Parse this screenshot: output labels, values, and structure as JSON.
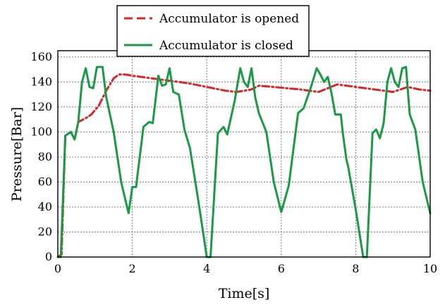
{
  "chart_data": {
    "type": "line",
    "title": "",
    "xlabel": "Time[s]",
    "ylabel": "Pressure[Bar]",
    "xlim": [
      0,
      10
    ],
    "ylim": [
      0,
      165
    ],
    "xticks": [
      0,
      2,
      4,
      6,
      8,
      10
    ],
    "yticks": [
      0,
      20,
      40,
      60,
      80,
      100,
      120,
      140,
      160
    ],
    "grid": true,
    "legend_position": "top-center, above plot",
    "series": [
      {
        "name": "Accumulator is opened",
        "color": "#d9262b",
        "dash": "dash-dot",
        "points": [
          [
            0.0,
            0
          ],
          [
            0.1,
            2
          ],
          [
            0.2,
            97
          ],
          [
            0.35,
            100
          ],
          [
            0.45,
            94
          ],
          [
            0.55,
            108
          ],
          [
            0.75,
            111
          ],
          [
            0.9,
            114
          ],
          [
            1.1,
            121
          ],
          [
            1.3,
            133
          ],
          [
            1.5,
            143
          ],
          [
            1.65,
            146
          ],
          [
            1.8,
            146
          ],
          [
            2.0,
            145
          ],
          [
            2.5,
            143
          ],
          [
            3.0,
            141
          ],
          [
            3.5,
            139
          ],
          [
            4.0,
            136
          ],
          [
            4.5,
            133
          ],
          [
            4.8,
            132
          ],
          [
            5.0,
            133
          ],
          [
            5.2,
            134
          ],
          [
            5.4,
            137
          ],
          [
            5.8,
            136
          ],
          [
            6.5,
            134
          ],
          [
            7.0,
            132
          ],
          [
            7.5,
            138
          ],
          [
            8.0,
            136
          ],
          [
            8.5,
            134
          ],
          [
            9.0,
            132
          ],
          [
            9.4,
            136
          ],
          [
            9.7,
            134
          ],
          [
            10.0,
            133
          ]
        ]
      },
      {
        "name": "Accumulator is closed",
        "color": "#1a9a45",
        "dash": "solid",
        "points": [
          [
            0.0,
            0
          ],
          [
            0.08,
            0
          ],
          [
            0.2,
            97
          ],
          [
            0.35,
            100
          ],
          [
            0.45,
            94
          ],
          [
            0.55,
            108
          ],
          [
            0.65,
            140
          ],
          [
            0.75,
            151
          ],
          [
            0.85,
            136
          ],
          [
            0.95,
            135
          ],
          [
            1.05,
            152
          ],
          [
            1.2,
            152
          ],
          [
            1.3,
            128
          ],
          [
            1.5,
            100
          ],
          [
            1.7,
            60
          ],
          [
            1.9,
            35
          ],
          [
            2.0,
            56
          ],
          [
            2.1,
            56
          ],
          [
            2.3,
            104
          ],
          [
            2.45,
            108
          ],
          [
            2.55,
            107
          ],
          [
            2.7,
            145
          ],
          [
            2.8,
            137
          ],
          [
            2.9,
            138
          ],
          [
            3.0,
            151
          ],
          [
            3.1,
            132
          ],
          [
            3.25,
            130
          ],
          [
            3.4,
            102
          ],
          [
            3.55,
            87
          ],
          [
            3.8,
            40
          ],
          [
            4.0,
            0
          ],
          [
            4.1,
            0
          ],
          [
            4.3,
            99
          ],
          [
            4.45,
            104
          ],
          [
            4.55,
            98
          ],
          [
            4.75,
            125
          ],
          [
            4.9,
            151
          ],
          [
            5.0,
            140
          ],
          [
            5.1,
            136
          ],
          [
            5.2,
            151
          ],
          [
            5.3,
            128
          ],
          [
            5.4,
            115
          ],
          [
            5.6,
            100
          ],
          [
            5.8,
            60
          ],
          [
            6.0,
            36
          ],
          [
            6.2,
            57
          ],
          [
            6.45,
            115
          ],
          [
            6.6,
            119
          ],
          [
            6.8,
            136
          ],
          [
            6.95,
            151
          ],
          [
            7.05,
            146
          ],
          [
            7.15,
            140
          ],
          [
            7.25,
            144
          ],
          [
            7.35,
            131
          ],
          [
            7.45,
            114
          ],
          [
            7.6,
            114
          ],
          [
            7.65,
            100
          ],
          [
            7.75,
            78
          ],
          [
            7.8,
            72
          ],
          [
            8.0,
            38
          ],
          [
            8.2,
            0
          ],
          [
            8.3,
            0
          ],
          [
            8.45,
            99
          ],
          [
            8.55,
            102
          ],
          [
            8.65,
            95
          ],
          [
            8.75,
            107
          ],
          [
            8.85,
            140
          ],
          [
            8.95,
            151
          ],
          [
            9.05,
            140
          ],
          [
            9.15,
            136
          ],
          [
            9.25,
            151
          ],
          [
            9.35,
            152
          ],
          [
            9.45,
            114
          ],
          [
            9.6,
            102
          ],
          [
            9.8,
            60
          ],
          [
            10.0,
            35
          ]
        ]
      }
    ]
  }
}
